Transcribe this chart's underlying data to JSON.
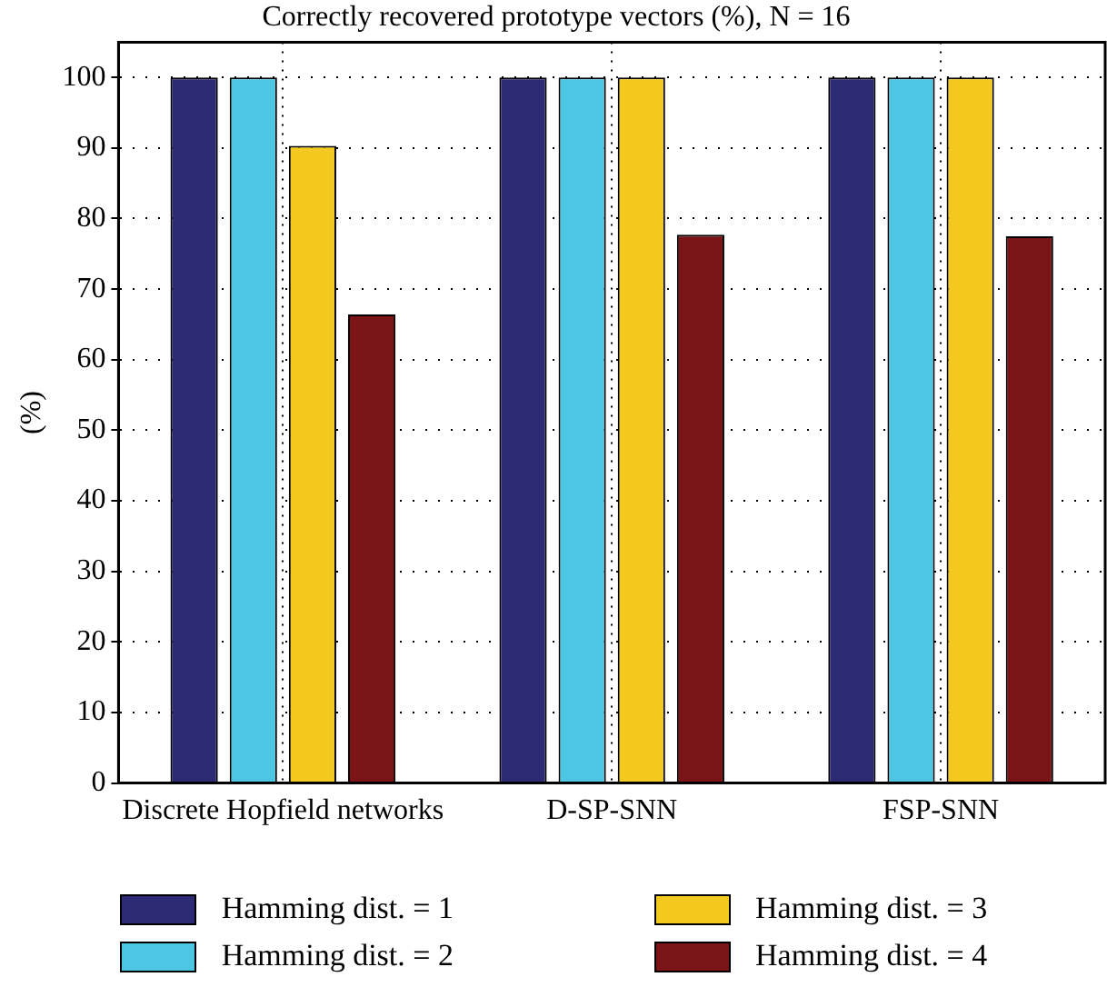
{
  "chart_data": {
    "type": "bar",
    "title": "Correctly recovered prototype vectors (%), N = 16",
    "ylabel": "(%)",
    "categories": [
      "Discrete Hopfield networks",
      "D-SP-SNN",
      "FSP-SNN"
    ],
    "series": [
      {
        "name": "Hamming dist. = 1",
        "color": "#2b2a73",
        "values": [
          100,
          100,
          100
        ]
      },
      {
        "name": "Hamming dist. = 2",
        "color": "#4cc6e3",
        "values": [
          100,
          100,
          100
        ]
      },
      {
        "name": "Hamming dist. = 3",
        "color": "#f3c920",
        "values": [
          90.3,
          100,
          100
        ]
      },
      {
        "name": "Hamming dist. = 4",
        "color": "#7b1416",
        "values": [
          66.4,
          77.7,
          77.5
        ]
      }
    ],
    "ylim": [
      0,
      105
    ],
    "yticks": [
      0,
      10,
      20,
      30,
      40,
      50,
      60,
      70,
      80,
      90,
      100
    ],
    "grid": true,
    "legend": "bottom"
  }
}
